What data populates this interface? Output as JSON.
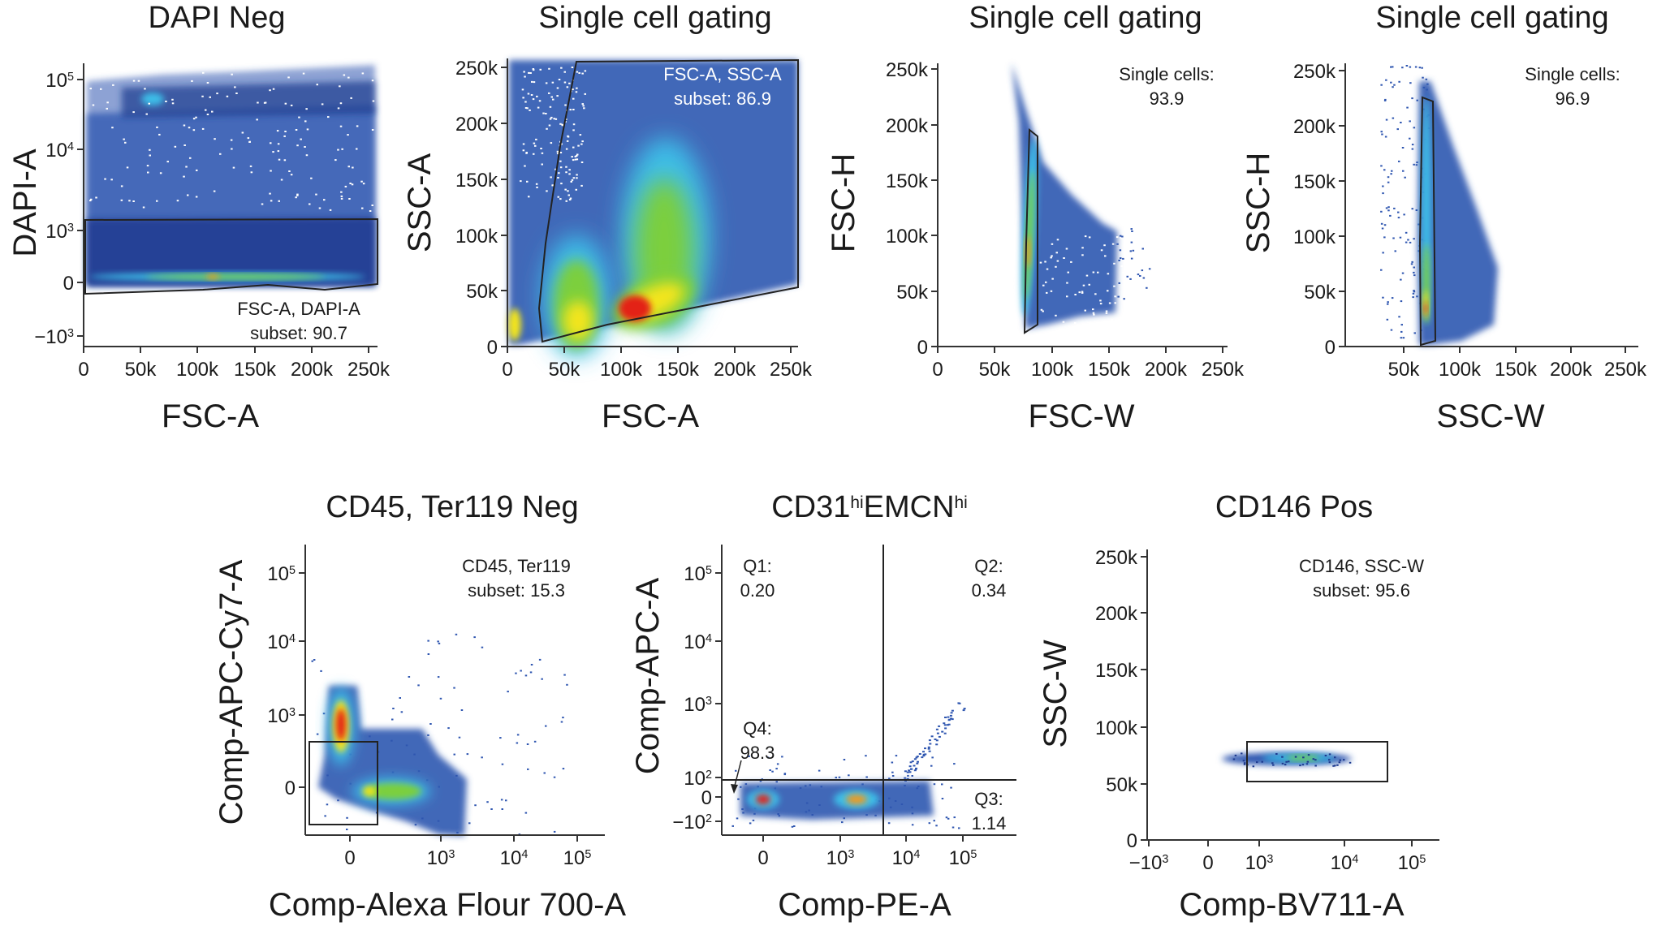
{
  "chart_data": [
    {
      "type": "scatter",
      "title_parts": [
        {
          "t": "DAPI Neg"
        }
      ],
      "xlabel": "FSC-A",
      "ylabel": "DAPI-A",
      "xlim": [
        0,
        262144
      ],
      "xticks": [
        {
          "base": "0"
        },
        {
          "base": "50k"
        },
        {
          "base": "100k"
        },
        {
          "base": "150k"
        },
        {
          "base": "200k"
        },
        {
          "base": "250k"
        }
      ],
      "yticks": [
        {
          "base": "10",
          "sup": "5"
        },
        {
          "base": "10",
          "sup": "4"
        },
        {
          "base": "10",
          "sup": "3"
        },
        {
          "base": "0"
        },
        {
          "base": "−10",
          "sup": "3"
        }
      ],
      "annotations": [
        {
          "lines": [
            "FSC-A, DAPI-A",
            "subset: 90.7"
          ]
        }
      ],
      "gate_percent": 90.7
    },
    {
      "type": "scatter",
      "title_parts": [
        {
          "t": "Single cell gating"
        }
      ],
      "xlabel": "FSC-A",
      "ylabel": "SSC-A",
      "xlim": [
        0,
        262144
      ],
      "ylim": [
        0,
        262144
      ],
      "xticks": [
        {
          "base": "0"
        },
        {
          "base": "50k"
        },
        {
          "base": "100k"
        },
        {
          "base": "150k"
        },
        {
          "base": "200k"
        },
        {
          "base": "250k"
        }
      ],
      "yticks": [
        {
          "base": "250k"
        },
        {
          "base": "200k"
        },
        {
          "base": "150k"
        },
        {
          "base": "100k"
        },
        {
          "base": "50k"
        },
        {
          "base": "0"
        }
      ],
      "annotations": [
        {
          "lines": [
            "FSC-A, SSC-A",
            "subset: 86.9"
          ]
        }
      ],
      "gate_percent": 86.9
    },
    {
      "type": "scatter",
      "title_parts": [
        {
          "t": "Single cell gating"
        }
      ],
      "xlabel": "FSC-W",
      "ylabel": "FSC-H",
      "xlim": [
        0,
        262144
      ],
      "ylim": [
        0,
        262144
      ],
      "xticks": [
        {
          "base": "0"
        },
        {
          "base": "50k"
        },
        {
          "base": "100k"
        },
        {
          "base": "150k"
        },
        {
          "base": "200k"
        },
        {
          "base": "250k"
        }
      ],
      "yticks": [
        {
          "base": "250k"
        },
        {
          "base": "200k"
        },
        {
          "base": "150k"
        },
        {
          "base": "100k"
        },
        {
          "base": "50k"
        },
        {
          "base": "0"
        }
      ],
      "annotations": [
        {
          "lines": [
            "Single cells:",
            "93.9"
          ]
        }
      ],
      "gate_percent": 93.9
    },
    {
      "type": "scatter",
      "title_parts": [
        {
          "t": "Single cell gating"
        }
      ],
      "xlabel": "SSC-W",
      "ylabel": "SSC-H",
      "xlim": [
        0,
        262144
      ],
      "ylim": [
        0,
        262144
      ],
      "xticks": [
        {
          "base": "50k"
        },
        {
          "base": "100k"
        },
        {
          "base": "150k"
        },
        {
          "base": "200k"
        },
        {
          "base": "250k"
        }
      ],
      "yticks": [
        {
          "base": "250k"
        },
        {
          "base": "200k"
        },
        {
          "base": "150k"
        },
        {
          "base": "100k"
        },
        {
          "base": "50k"
        },
        {
          "base": "0"
        }
      ],
      "annotations": [
        {
          "lines": [
            "Single cells:",
            "96.9"
          ]
        }
      ],
      "gate_percent": 96.9
    },
    {
      "type": "scatter",
      "title_parts": [
        {
          "t": "CD45, Ter119 Neg"
        }
      ],
      "xlabel": "Comp-Alexa Flour 700-A",
      "ylabel": "Comp-APC-Cy7-A",
      "xticks": [
        {
          "base": "0"
        },
        {
          "base": "10",
          "sup": "3"
        },
        {
          "base": "10",
          "sup": "4"
        },
        {
          "base": "10",
          "sup": "5"
        }
      ],
      "yticks": [
        {
          "base": "10",
          "sup": "5"
        },
        {
          "base": "10",
          "sup": "4"
        },
        {
          "base": "10",
          "sup": "3"
        },
        {
          "base": "0"
        }
      ],
      "annotations": [
        {
          "lines": [
            "CD45, Ter119",
            "subset: 15.3"
          ]
        }
      ],
      "gate_percent": 15.3
    },
    {
      "type": "scatter",
      "title_parts": [
        {
          "t": "CD31"
        },
        {
          "t": "hi",
          "sup": true
        },
        {
          "t": "EMCN"
        },
        {
          "t": "hi",
          "sup": true
        }
      ],
      "xlabel": "Comp-PE-A",
      "ylabel": "Comp-APC-A",
      "xticks": [
        {
          "base": "0"
        },
        {
          "base": "10",
          "sup": "3"
        },
        {
          "base": "10",
          "sup": "4"
        },
        {
          "base": "10",
          "sup": "5"
        }
      ],
      "yticks": [
        {
          "base": "10",
          "sup": "5"
        },
        {
          "base": "10",
          "sup": "4"
        },
        {
          "base": "10",
          "sup": "3"
        },
        {
          "base": "10",
          "sup": "2"
        },
        {
          "base": "0"
        },
        {
          "base": "−10",
          "sup": "2"
        }
      ],
      "annotations": [
        {
          "lines": [
            "Q1:",
            "0.20"
          ]
        },
        {
          "lines": [
            "Q2:",
            "0.34"
          ]
        },
        {
          "lines": [
            "Q4:",
            "98.3"
          ]
        },
        {
          "lines": [
            "Q3:",
            "1.14"
          ]
        }
      ],
      "quadrants": {
        "Q1": 0.2,
        "Q2": 0.34,
        "Q3": 1.14,
        "Q4": 98.3
      }
    },
    {
      "type": "scatter",
      "title_parts": [
        {
          "t": "CD146 Pos"
        }
      ],
      "xlabel": "Comp-BV711-A",
      "ylabel": "SSC-W",
      "ylim": [
        0,
        262144
      ],
      "xticks": [
        {
          "base": "−10",
          "sup": "3"
        },
        {
          "base": "0"
        },
        {
          "base": "10",
          "sup": "3"
        },
        {
          "base": "10",
          "sup": "4"
        },
        {
          "base": "10",
          "sup": "5"
        }
      ],
      "yticks": [
        {
          "base": "250k"
        },
        {
          "base": "200k"
        },
        {
          "base": "150k"
        },
        {
          "base": "100k"
        },
        {
          "base": "50k"
        },
        {
          "base": "0"
        }
      ],
      "annotations": [
        {
          "lines": [
            "CD146, SSC-W",
            "subset: 95.6"
          ]
        }
      ],
      "gate_percent": 95.6
    }
  ]
}
